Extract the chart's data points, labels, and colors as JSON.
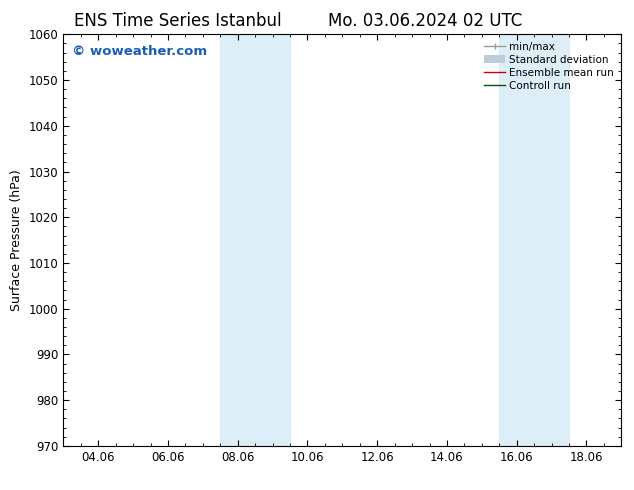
{
  "title_left": "ENS Time Series Istanbul",
  "title_right": "Mo. 03.06.2024 02 UTC",
  "ylabel": "Surface Pressure (hPa)",
  "ylim": [
    970,
    1060
  ],
  "yticks": [
    970,
    980,
    990,
    1000,
    1010,
    1020,
    1030,
    1040,
    1050,
    1060
  ],
  "xtick_labels": [
    "04.06",
    "06.06",
    "08.06",
    "10.06",
    "12.06",
    "14.06",
    "16.06",
    "18.06"
  ],
  "xtick_positions": [
    2,
    4,
    6,
    8,
    10,
    12,
    14,
    16
  ],
  "x_min": 1,
  "x_max": 17,
  "shaded_bands": [
    {
      "x_start": 5.5,
      "x_end": 7.5
    },
    {
      "x_start": 13.5,
      "x_end": 15.5
    }
  ],
  "shaded_color": "#ddeef8",
  "watermark_text": "© woweather.com",
  "watermark_color": "#1a5fb4",
  "background_color": "#ffffff",
  "legend_items": [
    {
      "label": "min/max",
      "color": "#999999",
      "lw": 1.0
    },
    {
      "label": "Standard deviation",
      "color": "#bbccdd",
      "lw": 5
    },
    {
      "label": "Ensemble mean run",
      "color": "#cc0000",
      "lw": 1.0
    },
    {
      "label": "Controll run",
      "color": "#005500",
      "lw": 1.0
    }
  ],
  "tick_color": "#000000",
  "title_fontsize": 12,
  "label_fontsize": 9,
  "tick_fontsize": 8.5,
  "watermark_fontsize": 9.5
}
